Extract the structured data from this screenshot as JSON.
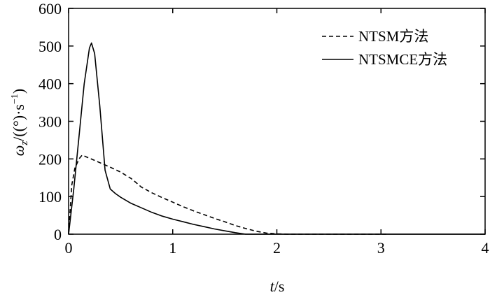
{
  "chart_data": {
    "type": "line",
    "xlabel": {
      "var": "t",
      "unit": "/s"
    },
    "ylabel": {
      "var": "ω",
      "sub": "z",
      "unit_pre": "/((°)·s",
      "sup": "−1",
      "unit_post": ")"
    },
    "xlim": [
      0,
      4
    ],
    "ylim": [
      0,
      600
    ],
    "xticks": [
      0,
      1,
      2,
      3,
      4
    ],
    "yticks": [
      0,
      100,
      200,
      300,
      400,
      500,
      600
    ],
    "grid": false,
    "legend_position": "top-right",
    "series": [
      {
        "name": "NTSM方法",
        "style": "dashed",
        "color": "#000000",
        "x": [
          0,
          0.03,
          0.06,
          0.1,
          0.13,
          0.2,
          0.3,
          0.4,
          0.5,
          0.6,
          0.7,
          0.8,
          0.9,
          1.0,
          1.1,
          1.2,
          1.3,
          1.4,
          1.5,
          1.6,
          1.7,
          1.8,
          1.9,
          2.0,
          2.1,
          2.5,
          3.0,
          3.05
        ],
        "y": [
          0,
          130,
          175,
          200,
          210,
          202,
          190,
          178,
          165,
          148,
          125,
          110,
          97,
          85,
          73,
          62,
          52,
          42,
          33,
          23,
          15,
          8,
          3,
          1,
          0,
          0,
          0,
          0
        ]
      },
      {
        "name": "NTSMCE方法",
        "style": "solid",
        "color": "#000000",
        "x": [
          0,
          0.05,
          0.1,
          0.15,
          0.2,
          0.22,
          0.25,
          0.3,
          0.35,
          0.4,
          0.45,
          0.5,
          0.6,
          0.7,
          0.8,
          0.9,
          1.0,
          1.1,
          1.2,
          1.3,
          1.4,
          1.5,
          1.6,
          1.7,
          2.0,
          2.5,
          3.0,
          3.5,
          4.0
        ],
        "y": [
          0,
          120,
          260,
          400,
          495,
          508,
          480,
          340,
          170,
          120,
          108,
          98,
          82,
          70,
          58,
          48,
          40,
          33,
          26,
          20,
          14,
          9,
          4,
          0,
          0,
          0,
          0,
          0,
          0
        ]
      }
    ]
  }
}
